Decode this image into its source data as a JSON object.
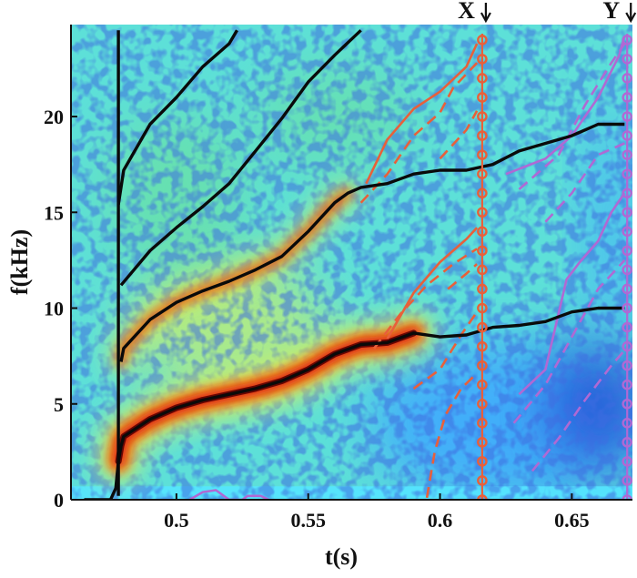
{
  "chart_data": {
    "type": "spectrogram",
    "xlabel": "t(s)",
    "ylabel": "f(kHz)",
    "xlim": [
      0.46,
      0.673
    ],
    "ylim": [
      0,
      24.8
    ],
    "x_ticks": [
      {
        "value": 0.5,
        "label": "0.5"
      },
      {
        "value": 0.55,
        "label": "0.55"
      },
      {
        "value": 0.6,
        "label": "0.6"
      },
      {
        "value": 0.65,
        "label": "0.65"
      }
    ],
    "y_ticks": [
      {
        "value": 0,
        "label": "0"
      },
      {
        "value": 5,
        "label": "5"
      },
      {
        "value": 10,
        "label": "10"
      },
      {
        "value": 15,
        "label": "15"
      },
      {
        "value": 20,
        "label": "20"
      }
    ],
    "colormap": [
      "#1f3fcf",
      "#3da6ff",
      "#55e6ff",
      "#6fe08a",
      "#ecf24a",
      "#ff9a1f",
      "#d91e0c",
      "#5a0000"
    ],
    "markers": [
      {
        "label": "X",
        "t": 0.616,
        "color": "#e8603a"
      },
      {
        "label": "Y",
        "t": 0.671,
        "color": "#b069d4"
      }
    ],
    "harmonics": [
      {
        "name": "h1",
        "points": [
          [
            0.465,
            0
          ],
          [
            0.475,
            0
          ],
          [
            0.477,
            0.6
          ],
          [
            0.478,
            2
          ],
          [
            0.479,
            2.8
          ],
          [
            0.48,
            3.3
          ],
          [
            0.49,
            4.2
          ],
          [
            0.5,
            4.8
          ],
          [
            0.51,
            5.2
          ],
          [
            0.52,
            5.5
          ],
          [
            0.53,
            5.8
          ],
          [
            0.54,
            6.2
          ],
          [
            0.55,
            6.8
          ],
          [
            0.56,
            7.6
          ],
          [
            0.57,
            8.1
          ],
          [
            0.58,
            8.2
          ],
          [
            0.59,
            8.7
          ],
          [
            0.6,
            8.5
          ],
          [
            0.61,
            8.6
          ],
          [
            0.62,
            9.0
          ],
          [
            0.63,
            9.1
          ],
          [
            0.64,
            9.3
          ],
          [
            0.65,
            9.8
          ],
          [
            0.66,
            10.0
          ],
          [
            0.67,
            10.0
          ]
        ]
      },
      {
        "name": "h2",
        "points": [
          [
            0.479,
            7.2
          ],
          [
            0.48,
            7.9
          ],
          [
            0.49,
            9.4
          ],
          [
            0.5,
            10.3
          ],
          [
            0.51,
            10.9
          ],
          [
            0.52,
            11.4
          ],
          [
            0.53,
            12.0
          ],
          [
            0.54,
            12.7
          ],
          [
            0.55,
            14.0
          ],
          [
            0.56,
            15.5
          ],
          [
            0.565,
            16.0
          ],
          [
            0.57,
            16.3
          ],
          [
            0.58,
            16.5
          ],
          [
            0.59,
            17.0
          ],
          [
            0.6,
            17.2
          ],
          [
            0.61,
            17.2
          ],
          [
            0.62,
            17.5
          ],
          [
            0.63,
            18.2
          ],
          [
            0.64,
            18.6
          ],
          [
            0.65,
            19.0
          ],
          [
            0.66,
            19.6
          ],
          [
            0.67,
            19.6
          ]
        ]
      },
      {
        "name": "h3",
        "points": [
          [
            0.479,
            11.2
          ],
          [
            0.49,
            13.0
          ],
          [
            0.5,
            14.2
          ],
          [
            0.51,
            15.3
          ],
          [
            0.52,
            16.5
          ],
          [
            0.53,
            18.2
          ],
          [
            0.54,
            19.9
          ],
          [
            0.55,
            21.8
          ],
          [
            0.56,
            23.2
          ],
          [
            0.57,
            24.5
          ]
        ]
      },
      {
        "name": "h4",
        "points": [
          [
            0.478,
            15.4
          ],
          [
            0.48,
            17.2
          ],
          [
            0.49,
            19.6
          ],
          [
            0.5,
            21.0
          ],
          [
            0.51,
            22.6
          ],
          [
            0.52,
            23.8
          ],
          [
            0.523,
            24.5
          ]
        ]
      },
      {
        "name": "h0",
        "points": [
          [
            0.478,
            0.2
          ],
          [
            0.478,
            24.5
          ]
        ]
      }
    ],
    "x_branches": [
      {
        "dashed": false,
        "points": [
          [
            0.572,
            16.5
          ],
          [
            0.58,
            18.8
          ],
          [
            0.59,
            20.4
          ],
          [
            0.6,
            21.3
          ],
          [
            0.61,
            22.6
          ],
          [
            0.614,
            23.8
          ]
        ]
      },
      {
        "dashed": true,
        "points": [
          [
            0.57,
            15.5
          ],
          [
            0.58,
            17.0
          ],
          [
            0.59,
            19.0
          ],
          [
            0.6,
            20.2
          ],
          [
            0.605,
            21.5
          ],
          [
            0.614,
            22.8
          ]
        ]
      },
      {
        "dashed": false,
        "points": [
          [
            0.58,
            8.4
          ],
          [
            0.59,
            10.8
          ],
          [
            0.6,
            12.4
          ],
          [
            0.61,
            13.6
          ],
          [
            0.614,
            14.2
          ]
        ]
      },
      {
        "dashed": true,
        "points": [
          [
            0.575,
            7.9
          ],
          [
            0.585,
            9.7
          ],
          [
            0.595,
            11.2
          ],
          [
            0.605,
            12.3
          ],
          [
            0.614,
            13.1
          ]
        ]
      },
      {
        "dashed": true,
        "points": [
          [
            0.59,
            5.8
          ],
          [
            0.6,
            6.8
          ],
          [
            0.608,
            8.6
          ],
          [
            0.614,
            9.8
          ]
        ]
      },
      {
        "dashed": true,
        "points": [
          [
            0.595,
            0.1
          ],
          [
            0.598,
            2.5
          ],
          [
            0.602,
            4.4
          ],
          [
            0.608,
            5.8
          ],
          [
            0.614,
            6.6
          ]
        ]
      },
      {
        "dashed": true,
        "points": [
          [
            0.6,
            17.8
          ],
          [
            0.61,
            19.3
          ],
          [
            0.614,
            20.3
          ]
        ]
      },
      {
        "dashed": true,
        "points": [
          [
            0.603,
            11.0
          ],
          [
            0.61,
            11.8
          ],
          [
            0.614,
            12.3
          ]
        ]
      }
    ],
    "y_branches": [
      {
        "dashed": false,
        "points": [
          [
            0.625,
            17.0
          ],
          [
            0.64,
            17.8
          ],
          [
            0.65,
            19.0
          ],
          [
            0.66,
            21.0
          ],
          [
            0.668,
            23.2
          ],
          [
            0.67,
            24.2
          ]
        ]
      },
      {
        "dashed": true,
        "points": [
          [
            0.63,
            16.2
          ],
          [
            0.645,
            18.0
          ],
          [
            0.655,
            20.6
          ],
          [
            0.665,
            22.8
          ],
          [
            0.67,
            23.8
          ]
        ]
      },
      {
        "dashed": false,
        "points": [
          [
            0.63,
            5.5
          ],
          [
            0.64,
            6.8
          ],
          [
            0.648,
            11.5
          ],
          [
            0.653,
            12.4
          ],
          [
            0.66,
            13.5
          ],
          [
            0.665,
            15.0
          ],
          [
            0.67,
            16.0
          ]
        ]
      },
      {
        "dashed": true,
        "points": [
          [
            0.628,
            4.0
          ],
          [
            0.64,
            6.0
          ],
          [
            0.65,
            8.5
          ],
          [
            0.66,
            11.0
          ],
          [
            0.67,
            12.5
          ]
        ]
      },
      {
        "dashed": true,
        "points": [
          [
            0.635,
            1.5
          ],
          [
            0.645,
            3.2
          ],
          [
            0.655,
            5.2
          ],
          [
            0.665,
            7.0
          ],
          [
            0.67,
            7.8
          ]
        ]
      },
      {
        "dashed": true,
        "points": [
          [
            0.64,
            14.5
          ],
          [
            0.65,
            16.0
          ],
          [
            0.66,
            18.0
          ],
          [
            0.67,
            18.6
          ]
        ]
      },
      {
        "dashed": false,
        "points": [
          [
            0.505,
            0
          ],
          [
            0.51,
            0.4
          ],
          [
            0.515,
            0.5
          ],
          [
            0.52,
            0
          ],
          [
            0.525,
            0
          ],
          [
            0.527,
            0.2
          ],
          [
            0.532,
            0.2
          ],
          [
            0.535,
            0
          ]
        ]
      }
    ]
  }
}
